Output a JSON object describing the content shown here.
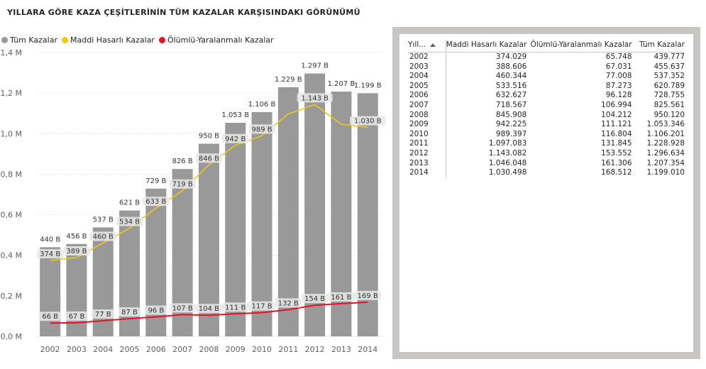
{
  "title": "YILLARA GÖRE KAZA ÇEŞİTLERİNİN TÜM KAZALAR KARŞISINDAKI GÖRÜNÜMÜ",
  "legend": [
    {
      "label": "Tüm Kazalar",
      "color": "#999999"
    },
    {
      "label": "Maddi Hasarlı Kazalar",
      "color": "#f2c811"
    },
    {
      "label": "Ölümlü-Yaralanmalı Kazalar",
      "color": "#e81123"
    }
  ],
  "chart_data": {
    "type": "bar",
    "categories": [
      "2002",
      "2003",
      "2004",
      "2005",
      "2006",
      "2007",
      "2008",
      "2009",
      "2010",
      "2011",
      "2012",
      "2013",
      "2014"
    ],
    "series": [
      {
        "name": "Tüm Kazalar",
        "type": "bar",
        "color": "#999999",
        "values": [
          439777,
          455637,
          537352,
          620789,
          728755,
          825561,
          950120,
          1053346,
          1106201,
          1228928,
          1296634,
          1207354,
          1199010
        ],
        "labels": [
          "440 B",
          "456 B",
          "537 B",
          "621 B",
          "729 B",
          "826 B",
          "950 B",
          "1.053 B",
          "1.106 B",
          "1.229 B",
          "1.297 B",
          "1.207 B",
          "1.199 B"
        ]
      },
      {
        "name": "Maddi Hasarlı Kazalar",
        "type": "line",
        "color": "#f2c811",
        "values": [
          374029,
          388606,
          460344,
          533516,
          632627,
          718567,
          845908,
          942225,
          989397,
          1097083,
          1143082,
          1046048,
          1030498
        ],
        "labels": [
          "374 B",
          "389 B",
          "460 B",
          "534 B",
          "633 B",
          "719 B",
          "846 B",
          "942 B",
          "989 B",
          "",
          "1.143 B",
          "",
          "1.030 B"
        ]
      },
      {
        "name": "Ölümlü-Yaralanmalı Kazalar",
        "type": "line",
        "color": "#e81123",
        "values": [
          65748,
          67031,
          77008,
          87273,
          96128,
          106994,
          104212,
          111121,
          116804,
          131845,
          153552,
          161306,
          168512
        ],
        "labels": [
          "66 B",
          "67 B",
          "77 B",
          "87 B",
          "96 B",
          "107 B",
          "104 B",
          "111 B",
          "117 B",
          "132 B",
          "154 B",
          "161 B",
          "169 B"
        ]
      }
    ],
    "ylim": [
      0,
      1400000
    ],
    "yticks": [
      0,
      200000,
      400000,
      600000,
      800000,
      1000000,
      1200000,
      1400000
    ],
    "ytick_labels": [
      "0,0 M",
      "0,2 M",
      "0,4 M",
      "0,6 M",
      "0,8 M",
      "1,0 M",
      "1,2 M",
      "1,4 M"
    ],
    "xlabel": "",
    "ylabel": "",
    "grid": true,
    "legend_position": "top-left"
  },
  "table": {
    "headers": [
      "Yıll...",
      "Maddi Hasarlı Kazalar",
      "Ölümlü-Yaralanmalı Kazalar",
      "Tüm Kazalar"
    ],
    "rows": [
      [
        "2002",
        "374.029",
        "65.748",
        "439.777"
      ],
      [
        "2003",
        "388.606",
        "67.031",
        "455.637"
      ],
      [
        "2004",
        "460.344",
        "77.008",
        "537.352"
      ],
      [
        "2005",
        "533.516",
        "87.273",
        "620.789"
      ],
      [
        "2006",
        "632.627",
        "96.128",
        "728.755"
      ],
      [
        "2007",
        "718.567",
        "106.994",
        "825.561"
      ],
      [
        "2008",
        "845.908",
        "104.212",
        "950.120"
      ],
      [
        "2009",
        "942.225",
        "111.121",
        "1.053.346"
      ],
      [
        "2010",
        "989.397",
        "116.804",
        "1.106.201"
      ],
      [
        "2011",
        "1.097.083",
        "131.845",
        "1.228.928"
      ],
      [
        "2012",
        "1.143.082",
        "153.552",
        "1.296.634"
      ],
      [
        "2013",
        "1.046.048",
        "161.306",
        "1.207.354"
      ],
      [
        "2014",
        "1.030.498",
        "168.512",
        "1.199.010"
      ]
    ]
  }
}
